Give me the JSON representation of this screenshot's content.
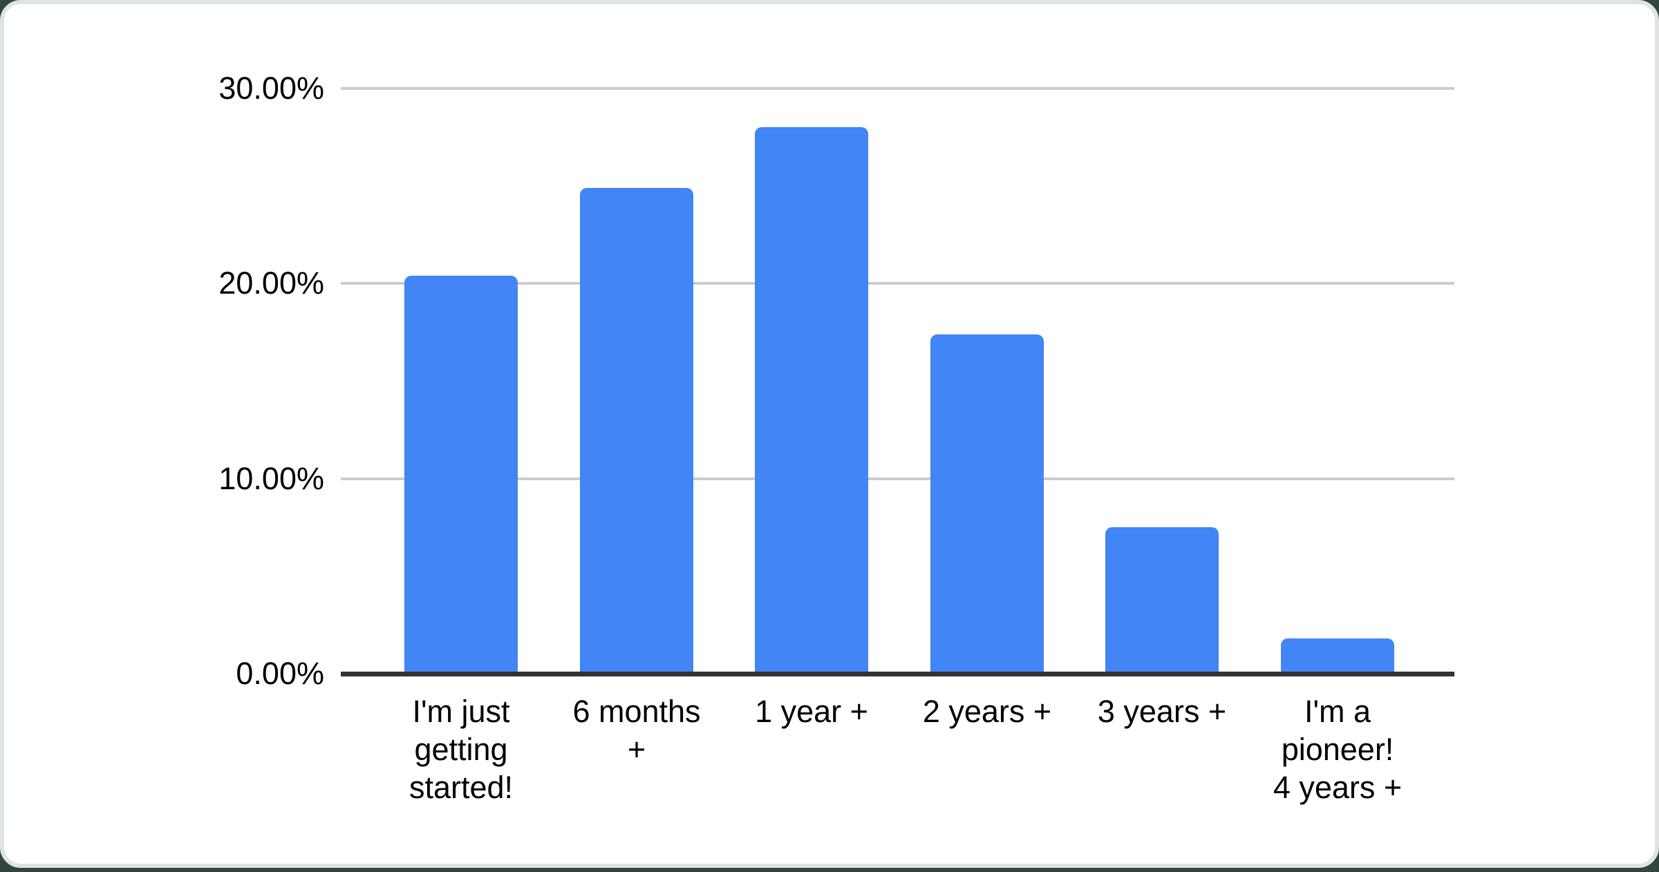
{
  "chart_data": {
    "type": "bar",
    "title": "",
    "xlabel": "",
    "ylabel": "",
    "categories": [
      "I'm just getting started!",
      "6 months +",
      "1 year +",
      "2 years +",
      "3 years +",
      "I'm a pioneer! 4 years +"
    ],
    "category_lines": [
      [
        "I'm just",
        "getting",
        "started!"
      ],
      [
        "6 months",
        "+"
      ],
      [
        "1 year +"
      ],
      [
        "2 years +"
      ],
      [
        "3 years +"
      ],
      [
        "I'm a",
        "pioneer!",
        "4 years +"
      ]
    ],
    "values": [
      20.4,
      24.9,
      28.0,
      17.4,
      7.5,
      1.8
    ],
    "value_unit": "%",
    "y_axis": {
      "min": 0,
      "max": 30,
      "ticks": [
        {
          "value": 0,
          "label": "0.00%"
        },
        {
          "value": 10,
          "label": "10.00%"
        },
        {
          "value": 20,
          "label": "20.00%"
        },
        {
          "value": 30,
          "label": "30.00%"
        }
      ]
    },
    "grid": true,
    "legend": "none",
    "colors": {
      "bar": "#4285f4",
      "gridline": "#cccccc",
      "axis_line": "#333333",
      "label_text": "#000000",
      "card_background": "#ffffff",
      "card_border": "#dfe4e3",
      "page_background": "#31463c"
    }
  }
}
